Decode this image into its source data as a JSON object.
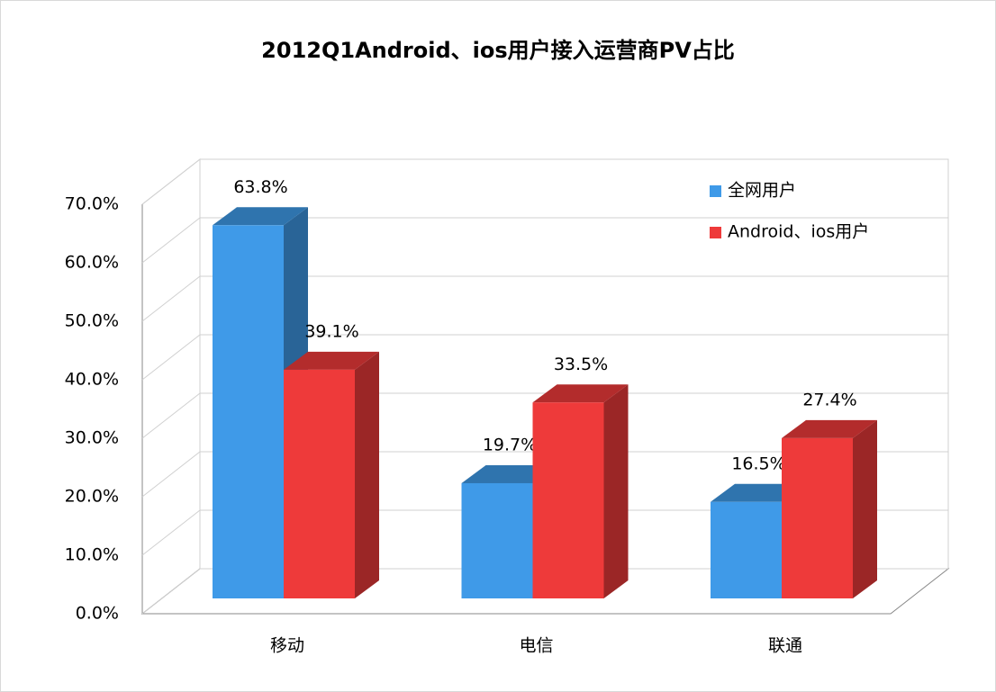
{
  "chart_data": {
    "type": "bar3d",
    "title": "2012Q1Android、ios用户接入运营商PV占比",
    "categories": [
      "移动",
      "电信",
      "联通"
    ],
    "series": [
      {
        "name": "全网用户",
        "color": "#3f9ae8",
        "values": [
          63.8,
          19.7,
          16.5
        ],
        "value_labels": [
          "63.8%",
          "19.7%",
          "16.5%"
        ]
      },
      {
        "name": "Android、ios用户",
        "color": "#ee3a3a",
        "values": [
          39.1,
          33.5,
          27.4
        ],
        "value_labels": [
          "39.1%",
          "33.5%",
          "27.4%"
        ]
      }
    ],
    "ylim": [
      0,
      70
    ],
    "yticks": [
      {
        "value": 0,
        "label": "0.0%"
      },
      {
        "value": 10,
        "label": "10.0%"
      },
      {
        "value": 20,
        "label": "20.0%"
      },
      {
        "value": 30,
        "label": "30.0%"
      },
      {
        "value": 40,
        "label": "40.0%"
      },
      {
        "value": 50,
        "label": "50.0%"
      },
      {
        "value": 60,
        "label": "60.0%"
      },
      {
        "value": 70,
        "label": "70.0%"
      }
    ],
    "grid": true,
    "legend": "top-right"
  }
}
